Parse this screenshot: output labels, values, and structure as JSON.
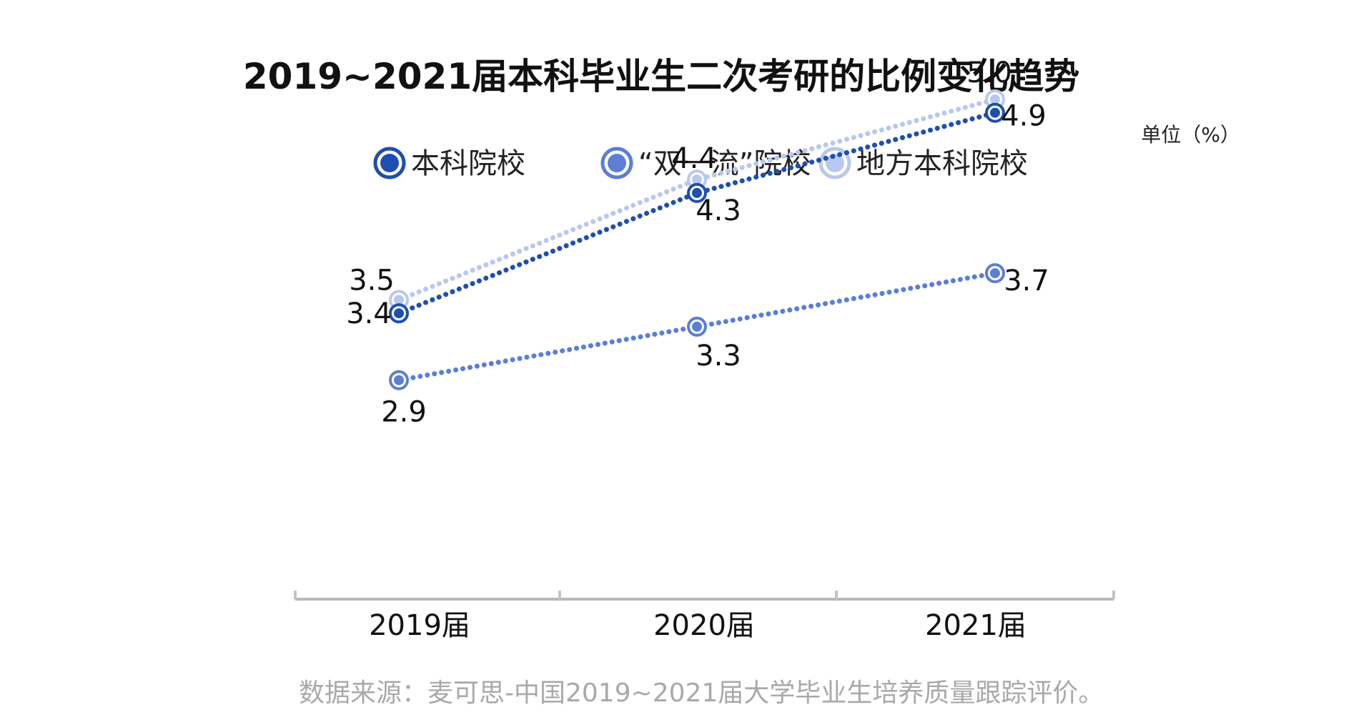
{
  "chart_data": {
    "type": "line",
    "title": "2019~2021届本科毕业生二次考研的比例变化趋势",
    "unit": "单位（%）",
    "categories": [
      "2019届",
      "2020届",
      "2021届"
    ],
    "ylim": [
      0,
      6
    ],
    "grid": false,
    "legend_position": "top",
    "series": [
      {
        "name": "本科院校",
        "values": [
          3.4,
          4.3,
          4.9
        ],
        "color": "#1f4fae"
      },
      {
        "name": "“双一流”院校",
        "values": [
          2.9,
          3.3,
          3.7
        ],
        "color": "#5c7fd4"
      },
      {
        "name": "地方本科院校",
        "values": [
          3.5,
          4.4,
          5.0
        ],
        "color": "#b9c8ee"
      }
    ],
    "value_labels": [
      [
        "3.4",
        "4.3",
        "4.9"
      ],
      [
        "2.9",
        "3.3",
        "3.7"
      ],
      [
        "3.5",
        "4.4",
        "5.0"
      ]
    ],
    "source": "数据来源：麦可思-中国2019~2021届大学毕业生培养质量跟踪评价。"
  }
}
